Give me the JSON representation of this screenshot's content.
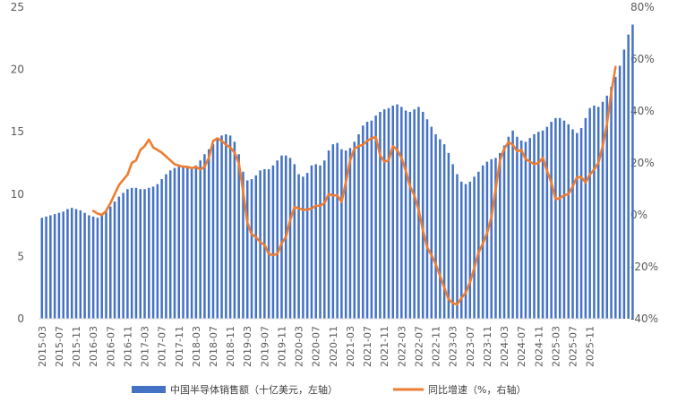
{
  "chart_data": {
    "type": "bar+line",
    "title": "",
    "colors": {
      "bar": "#4472C4",
      "line": "#ED7D31",
      "axis": "#D9D9D9",
      "text": "#595959"
    },
    "y_left": {
      "min": 0,
      "max": 25,
      "ticks": [
        "0",
        "5",
        "10",
        "15",
        "20",
        "25"
      ]
    },
    "y_right": {
      "min": -40,
      "max": 80,
      "ticks": [
        "-40%",
        "-20%",
        "0%",
        "20%",
        "40%",
        "60%",
        "80%"
      ]
    },
    "x_ticks": [
      "2015-03",
      "2015-07",
      "2015-11",
      "2016-03",
      "2016-07",
      "2016-11",
      "2017-03",
      "2017-07",
      "2017-11",
      "2018-03",
      "2018-07",
      "2018-11",
      "2019-03",
      "2019-07",
      "2019-11",
      "2020-03",
      "2020-07",
      "2020-11",
      "2021-03",
      "2021-07",
      "2021-11",
      "2022-03",
      "2022-07",
      "2022-11",
      "2023-03",
      "2023-07",
      "2023-11",
      "2024-03",
      "2024-07",
      "2024-11",
      "2025-03",
      "2025-07",
      "2025-11"
    ],
    "grid": false,
    "legend_position": "bottom",
    "series": [
      {
        "name": "中国半导体销售额（十亿美元，左轴）",
        "type": "bar",
        "axis": "left",
        "start": "2015-03",
        "values": [
          8.1,
          8.2,
          8.3,
          8.4,
          8.5,
          8.6,
          8.8,
          8.9,
          8.8,
          8.7,
          8.5,
          8.3,
          8.2,
          8.1,
          8.3,
          8.6,
          9.0,
          9.4,
          9.8,
          10.1,
          10.4,
          10.5,
          10.5,
          10.4,
          10.4,
          10.5,
          10.6,
          10.8,
          11.2,
          11.6,
          11.9,
          12.1,
          12.2,
          12.3,
          12.2,
          12.1,
          12.3,
          12.7,
          13.2,
          13.6,
          14.0,
          14.4,
          14.7,
          14.8,
          14.7,
          14.2,
          13.2,
          11.8,
          11.1,
          11.2,
          11.5,
          11.9,
          12.0,
          12.0,
          12.3,
          12.7,
          13.1,
          13.1,
          12.9,
          12.4,
          11.6,
          11.4,
          11.7,
          12.3,
          12.4,
          12.3,
          12.7,
          13.5,
          14.0,
          14.1,
          13.6,
          13.5,
          13.7,
          14.2,
          14.8,
          15.5,
          15.8,
          15.9,
          16.3,
          16.6,
          16.8,
          16.9,
          17.1,
          17.2,
          17.0,
          16.7,
          16.6,
          16.8,
          17.0,
          16.6,
          16.0,
          15.4,
          14.8,
          14.4,
          14.0,
          13.3,
          12.4,
          11.6,
          11.0,
          10.8,
          11.0,
          11.4,
          11.8,
          12.3,
          12.6,
          12.8,
          12.9,
          13.3,
          13.9,
          14.6,
          15.1,
          14.6,
          14.3,
          14.2,
          14.5,
          14.8,
          15.0,
          15.1,
          15.4,
          15.8,
          16.1,
          16.1,
          15.9,
          15.6,
          15.2,
          14.9,
          15.3,
          16.1,
          16.9,
          17.1,
          17.0,
          17.4,
          17.9,
          18.6,
          19.4,
          20.3,
          21.6,
          22.8,
          23.6
        ]
      },
      {
        "name": "同比增速（%，右轴）",
        "type": "line",
        "axis": "right",
        "start": "2016-03",
        "values": [
          1.5,
          0.5,
          0.0,
          1.5,
          4.5,
          8.0,
          11.5,
          13.5,
          15.5,
          20.0,
          21.0,
          25.0,
          26.5,
          29.0,
          26.0,
          25.0,
          24.0,
          22.5,
          21.0,
          19.5,
          19.0,
          18.5,
          18.5,
          18.0,
          18.5,
          17.5,
          18.5,
          22.0,
          28.5,
          29.5,
          28.5,
          27.0,
          26.0,
          24.0,
          20.0,
          9.0,
          -3.0,
          -7.5,
          -8.5,
          -10.5,
          -11.5,
          -15.0,
          -15.5,
          -15.0,
          -11.0,
          -8.5,
          -2.0,
          3.0,
          2.5,
          2.0,
          2.0,
          2.5,
          3.5,
          3.5,
          4.5,
          8.0,
          7.5,
          7.5,
          5.0,
          12.5,
          21.0,
          25.5,
          26.5,
          27.0,
          28.5,
          29.5,
          30.0,
          23.0,
          20.5,
          21.0,
          26.5,
          25.0,
          22.0,
          17.0,
          11.0,
          7.5,
          2.0,
          -6.0,
          -12.5,
          -15.5,
          -19.0,
          -23.5,
          -28.0,
          -32.5,
          -34.0,
          -34.5,
          -32.0,
          -30.0,
          -26.0,
          -20.5,
          -14.5,
          -11.0,
          -7.0,
          -1.0,
          10.0,
          21.0,
          25.5,
          28.0,
          27.0,
          24.5,
          25.0,
          21.5,
          20.5,
          19.5,
          20.0,
          22.0,
          17.0,
          12.5,
          6.0,
          6.5,
          7.5,
          8.0,
          11.0,
          14.5,
          14.5,
          12.5,
          15.5,
          17.5,
          20.0,
          26.5,
          35.0,
          47.0,
          57.0
        ]
      }
    ]
  }
}
